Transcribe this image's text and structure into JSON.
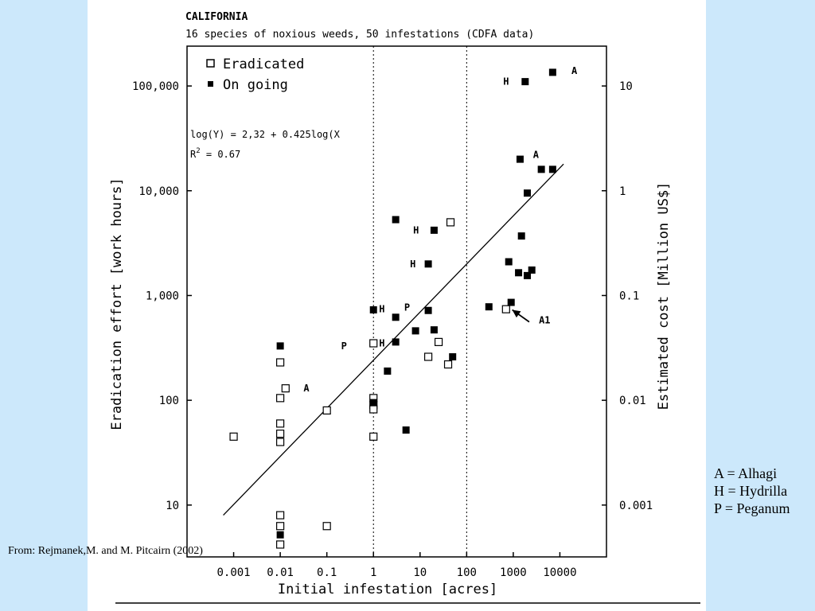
{
  "chart_data": {
    "type": "scatter",
    "title": "CALIFORNIA",
    "subtitle": "16 species of noxious weeds, 50 infestations (CDFA data)",
    "xlabel": "Initial infestation  [acres]",
    "ylabel": "Eradication effort  [work hours]",
    "y2label": "Estimated cost  [Million US$]",
    "x_scale": "log",
    "y_scale": "log",
    "xlim": [
      0.0001,
      100000
    ],
    "ylim": [
      3.2,
      240000
    ],
    "x_ticks": [
      0.001,
      0.01,
      0.1,
      1,
      10,
      100,
      1000,
      10000
    ],
    "x_tick_labels": [
      "0.001",
      "0.01",
      "0.1",
      "1",
      "10",
      "100",
      "1000",
      "10000"
    ],
    "y_ticks": [
      10,
      100,
      1000,
      10000,
      100000
    ],
    "y_tick_labels": [
      "10",
      "100",
      "1,000",
      "10,000",
      "100,000"
    ],
    "y2_ticks": [
      10,
      100,
      1000,
      10000,
      100000
    ],
    "y2_tick_labels": [
      "0.001",
      "0.01",
      "0.1",
      "1",
      "10"
    ],
    "vlines": [
      1,
      100
    ],
    "equation": "log(Y) = 2,32 + 0.425log(X",
    "r2_label": "R",
    "r2_superscript": "2",
    "r2_value": " = 0.67",
    "fit_line": {
      "x": [
        0.0006,
        12000
      ],
      "y": [
        8,
        18000
      ]
    },
    "legend_position": "top-left",
    "series": [
      {
        "name": "Eradicated",
        "marker": "open-square",
        "points": [
          [
            0.001,
            45
          ],
          [
            0.01,
            230
          ],
          [
            0.01,
            105
          ],
          [
            0.013,
            130
          ],
          [
            0.01,
            60
          ],
          [
            0.01,
            48
          ],
          [
            0.01,
            40
          ],
          [
            0.01,
            8
          ],
          [
            0.01,
            6.3
          ],
          [
            0.01,
            4.2
          ],
          [
            0.1,
            80
          ],
          [
            0.1,
            6.3
          ],
          [
            1,
            350
          ],
          [
            1,
            105
          ],
          [
            1,
            90
          ],
          [
            1,
            82
          ],
          [
            1,
            45
          ],
          [
            15,
            260
          ],
          [
            25,
            360
          ],
          [
            40,
            220
          ],
          [
            45,
            5000
          ],
          [
            700,
            740
          ]
        ]
      },
      {
        "name": "On going",
        "marker": "filled-square",
        "points": [
          [
            0.01,
            330
          ],
          [
            0.01,
            5.2
          ],
          [
            1,
            730
          ],
          [
            1,
            95
          ],
          [
            3,
            5300
          ],
          [
            3,
            620
          ],
          [
            3,
            360
          ],
          [
            2,
            190
          ],
          [
            5,
            52
          ],
          [
            8,
            460
          ],
          [
            15,
            720
          ],
          [
            15,
            2000
          ],
          [
            20,
            4200
          ],
          [
            20,
            470
          ],
          [
            50,
            260
          ],
          [
            300,
            780
          ],
          [
            900,
            860
          ],
          [
            800,
            2100
          ],
          [
            1300,
            1650
          ],
          [
            1400,
            20000
          ],
          [
            1500,
            3700
          ],
          [
            1800,
            110000
          ],
          [
            2000,
            1550
          ],
          [
            2000,
            9500
          ],
          [
            2500,
            1750
          ],
          [
            4000,
            16000
          ],
          [
            7000,
            16000
          ],
          [
            7000,
            135000
          ]
        ]
      }
    ],
    "annotations": [
      {
        "text": "H",
        "x": 2.6,
        "y": 740,
        "offset": "left"
      },
      {
        "text": "H",
        "x": 2.6,
        "y": 350,
        "offset": "left"
      },
      {
        "text": "P",
        "x": 0.4,
        "y": 330,
        "offset": "left"
      },
      {
        "text": "A",
        "x": 0.025,
        "y": 130,
        "offset": "right"
      },
      {
        "text": "P",
        "x": 9,
        "y": 770,
        "offset": "left"
      },
      {
        "text": "H",
        "x": 12,
        "y": 2000,
        "offset": "left"
      },
      {
        "text": "H",
        "x": 14,
        "y": 4200,
        "offset": "left"
      },
      {
        "text": "A",
        "x": 2100,
        "y": 22000,
        "offset": "right"
      },
      {
        "text": "H",
        "x": 1200,
        "y": 110000,
        "offset": "left"
      },
      {
        "text": "A",
        "x": 14000,
        "y": 140000,
        "offset": "right"
      },
      {
        "text": "A1",
        "x": 2800,
        "y": 580,
        "offset": "right"
      }
    ],
    "arrow": {
      "from": [
        2200,
        560
      ],
      "to": [
        950,
        730
      ]
    }
  },
  "side_note": [
    "A = Alhagi",
    "H = Hydrilla",
    "P = Peganum"
  ],
  "citation": "From: Rejmanek,M. and M. Pitcairn (2002)"
}
